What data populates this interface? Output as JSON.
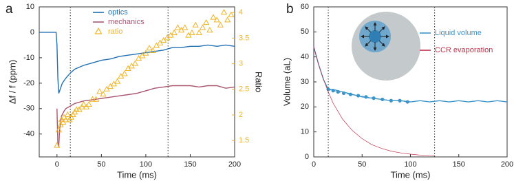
{
  "chart_data": [
    {
      "type": "line",
      "panel_label": "a",
      "xlabel": "Time (ms)",
      "ylabel": "Δf / f (ppm)",
      "y2label": "Ratio",
      "xlim": [
        -20,
        200
      ],
      "xticks": [
        0,
        50,
        100,
        150,
        200
      ],
      "ylim": [
        -49,
        10
      ],
      "yticks": [
        -40,
        -30,
        -20,
        -10,
        0,
        10
      ],
      "y2lim": [
        1.18,
        4.11
      ],
      "y2ticks": [
        1.5,
        2,
        2.5,
        3,
        3.5,
        4
      ],
      "vlines": [
        15,
        125
      ],
      "legend": "upper center",
      "series": [
        {
          "name": "optics",
          "color": "#1f6fb4",
          "style": "line",
          "x": [
            -20,
            -15,
            -10,
            -5,
            -1,
            0,
            1,
            2,
            4,
            6,
            10,
            15,
            20,
            30,
            40,
            50,
            60,
            70,
            80,
            90,
            100,
            110,
            120,
            130,
            140,
            150,
            160,
            170,
            180,
            190,
            200
          ],
          "values": [
            0,
            0,
            0,
            0,
            0,
            -5,
            -18,
            -24,
            -22,
            -20,
            -18,
            -16,
            -14.5,
            -13,
            -12,
            -11,
            -10.5,
            -9.5,
            -9,
            -8.5,
            -8,
            -7.5,
            -7,
            -6,
            -6,
            -5.5,
            -5.5,
            -5,
            -5.5,
            -5,
            -5.5
          ]
        },
        {
          "name": "mechanics",
          "color": "#a8566e",
          "style": "line",
          "x": [
            0,
            1,
            2,
            3,
            5,
            8,
            10,
            15,
            20,
            30,
            40,
            50,
            60,
            70,
            80,
            90,
            100,
            110,
            120,
            130,
            140,
            150,
            160,
            170,
            180,
            190,
            200
          ],
          "values": [
            -30,
            -44,
            -45,
            -38,
            -33,
            -31,
            -30,
            -29,
            -28,
            -27,
            -26.5,
            -26,
            -25.5,
            -25,
            -24.5,
            -24,
            -23,
            -22,
            -21.5,
            -21,
            -21,
            -21,
            -21.5,
            -21,
            -21,
            -22,
            -21.5
          ]
        },
        {
          "name": "ratio",
          "color": "#f0b323",
          "style": "scatter",
          "marker": "triangle",
          "axis": "y2",
          "x": [
            0,
            2,
            4,
            5,
            7,
            8,
            10,
            12,
            14,
            16,
            18,
            20,
            22,
            25,
            28,
            30,
            33,
            36,
            40,
            44,
            48,
            52,
            56,
            60,
            64,
            68,
            72,
            76,
            80,
            84,
            88,
            92,
            96,
            100,
            104,
            108,
            112,
            116,
            120,
            124,
            128,
            132,
            136,
            140,
            144,
            148,
            152,
            156,
            160,
            164,
            168,
            172,
            176,
            180,
            184,
            188,
            192,
            196
          ],
          "values": [
            1.4,
            1.7,
            1.8,
            1.9,
            1.85,
            1.95,
            1.9,
            2.0,
            1.9,
            1.95,
            2.0,
            2.05,
            2.1,
            2.1,
            2.15,
            2.2,
            2.15,
            2.2,
            2.3,
            2.3,
            2.45,
            2.4,
            2.5,
            2.55,
            2.6,
            2.65,
            2.75,
            2.8,
            2.9,
            2.95,
            3.0,
            3.1,
            3.15,
            3.2,
            3.3,
            3.25,
            3.35,
            3.4,
            3.45,
            3.5,
            3.55,
            3.6,
            3.7,
            3.65,
            3.7,
            3.55,
            3.6,
            3.75,
            3.6,
            3.7,
            3.8,
            3.65,
            3.9,
            3.85,
            3.75,
            4.0,
            3.85,
            3.95
          ]
        }
      ]
    },
    {
      "type": "line",
      "panel_label": "b",
      "xlabel": "Time (ms)",
      "ylabel": "Volume (aL)",
      "xlim": [
        0,
        200
      ],
      "xticks": [
        0,
        50,
        100,
        150,
        200
      ],
      "ylim": [
        0,
        60
      ],
      "yticks": [
        0,
        10,
        20,
        30,
        40,
        50,
        60
      ],
      "vlines": [
        15,
        125
      ],
      "legend": "upper right",
      "series": [
        {
          "name": "Liquid volume",
          "color": "#3b95c8",
          "style": "line",
          "x": [
            0,
            5,
            10,
            15,
            20,
            30,
            40,
            50,
            60,
            70,
            80,
            90,
            100,
            110,
            120,
            130,
            140,
            150,
            160,
            170,
            180,
            190,
            200
          ],
          "values": [
            44,
            37,
            31,
            27,
            27,
            26,
            25,
            24,
            23.5,
            23,
            22.5,
            22.5,
            22,
            22.5,
            22,
            22.5,
            22,
            22.5,
            22,
            22.5,
            22,
            22.5,
            22
          ],
          "markers": {
            "x": [
              15,
              20,
              25,
              31,
              38,
              46,
              54,
              62,
              71,
              80,
              89,
              97
            ],
            "values": [
              27,
              26.5,
              26,
              25.5,
              25,
              24.5,
              24,
              23.5,
              23,
              22.5,
              22.5,
              22
            ]
          }
        },
        {
          "name": "CCR evaporation",
          "color": "#c0304a",
          "style": "line",
          "thin": true,
          "x": [
            0,
            5,
            10,
            15,
            20,
            30,
            40,
            50,
            60,
            70,
            80,
            90,
            100,
            110,
            120,
            125
          ],
          "values": [
            44,
            37,
            31,
            26,
            21.5,
            15,
            10.5,
            7.3,
            4.9,
            3.4,
            2.3,
            1.6,
            1.1,
            0.75,
            0.5,
            0.45
          ]
        }
      ]
    }
  ]
}
